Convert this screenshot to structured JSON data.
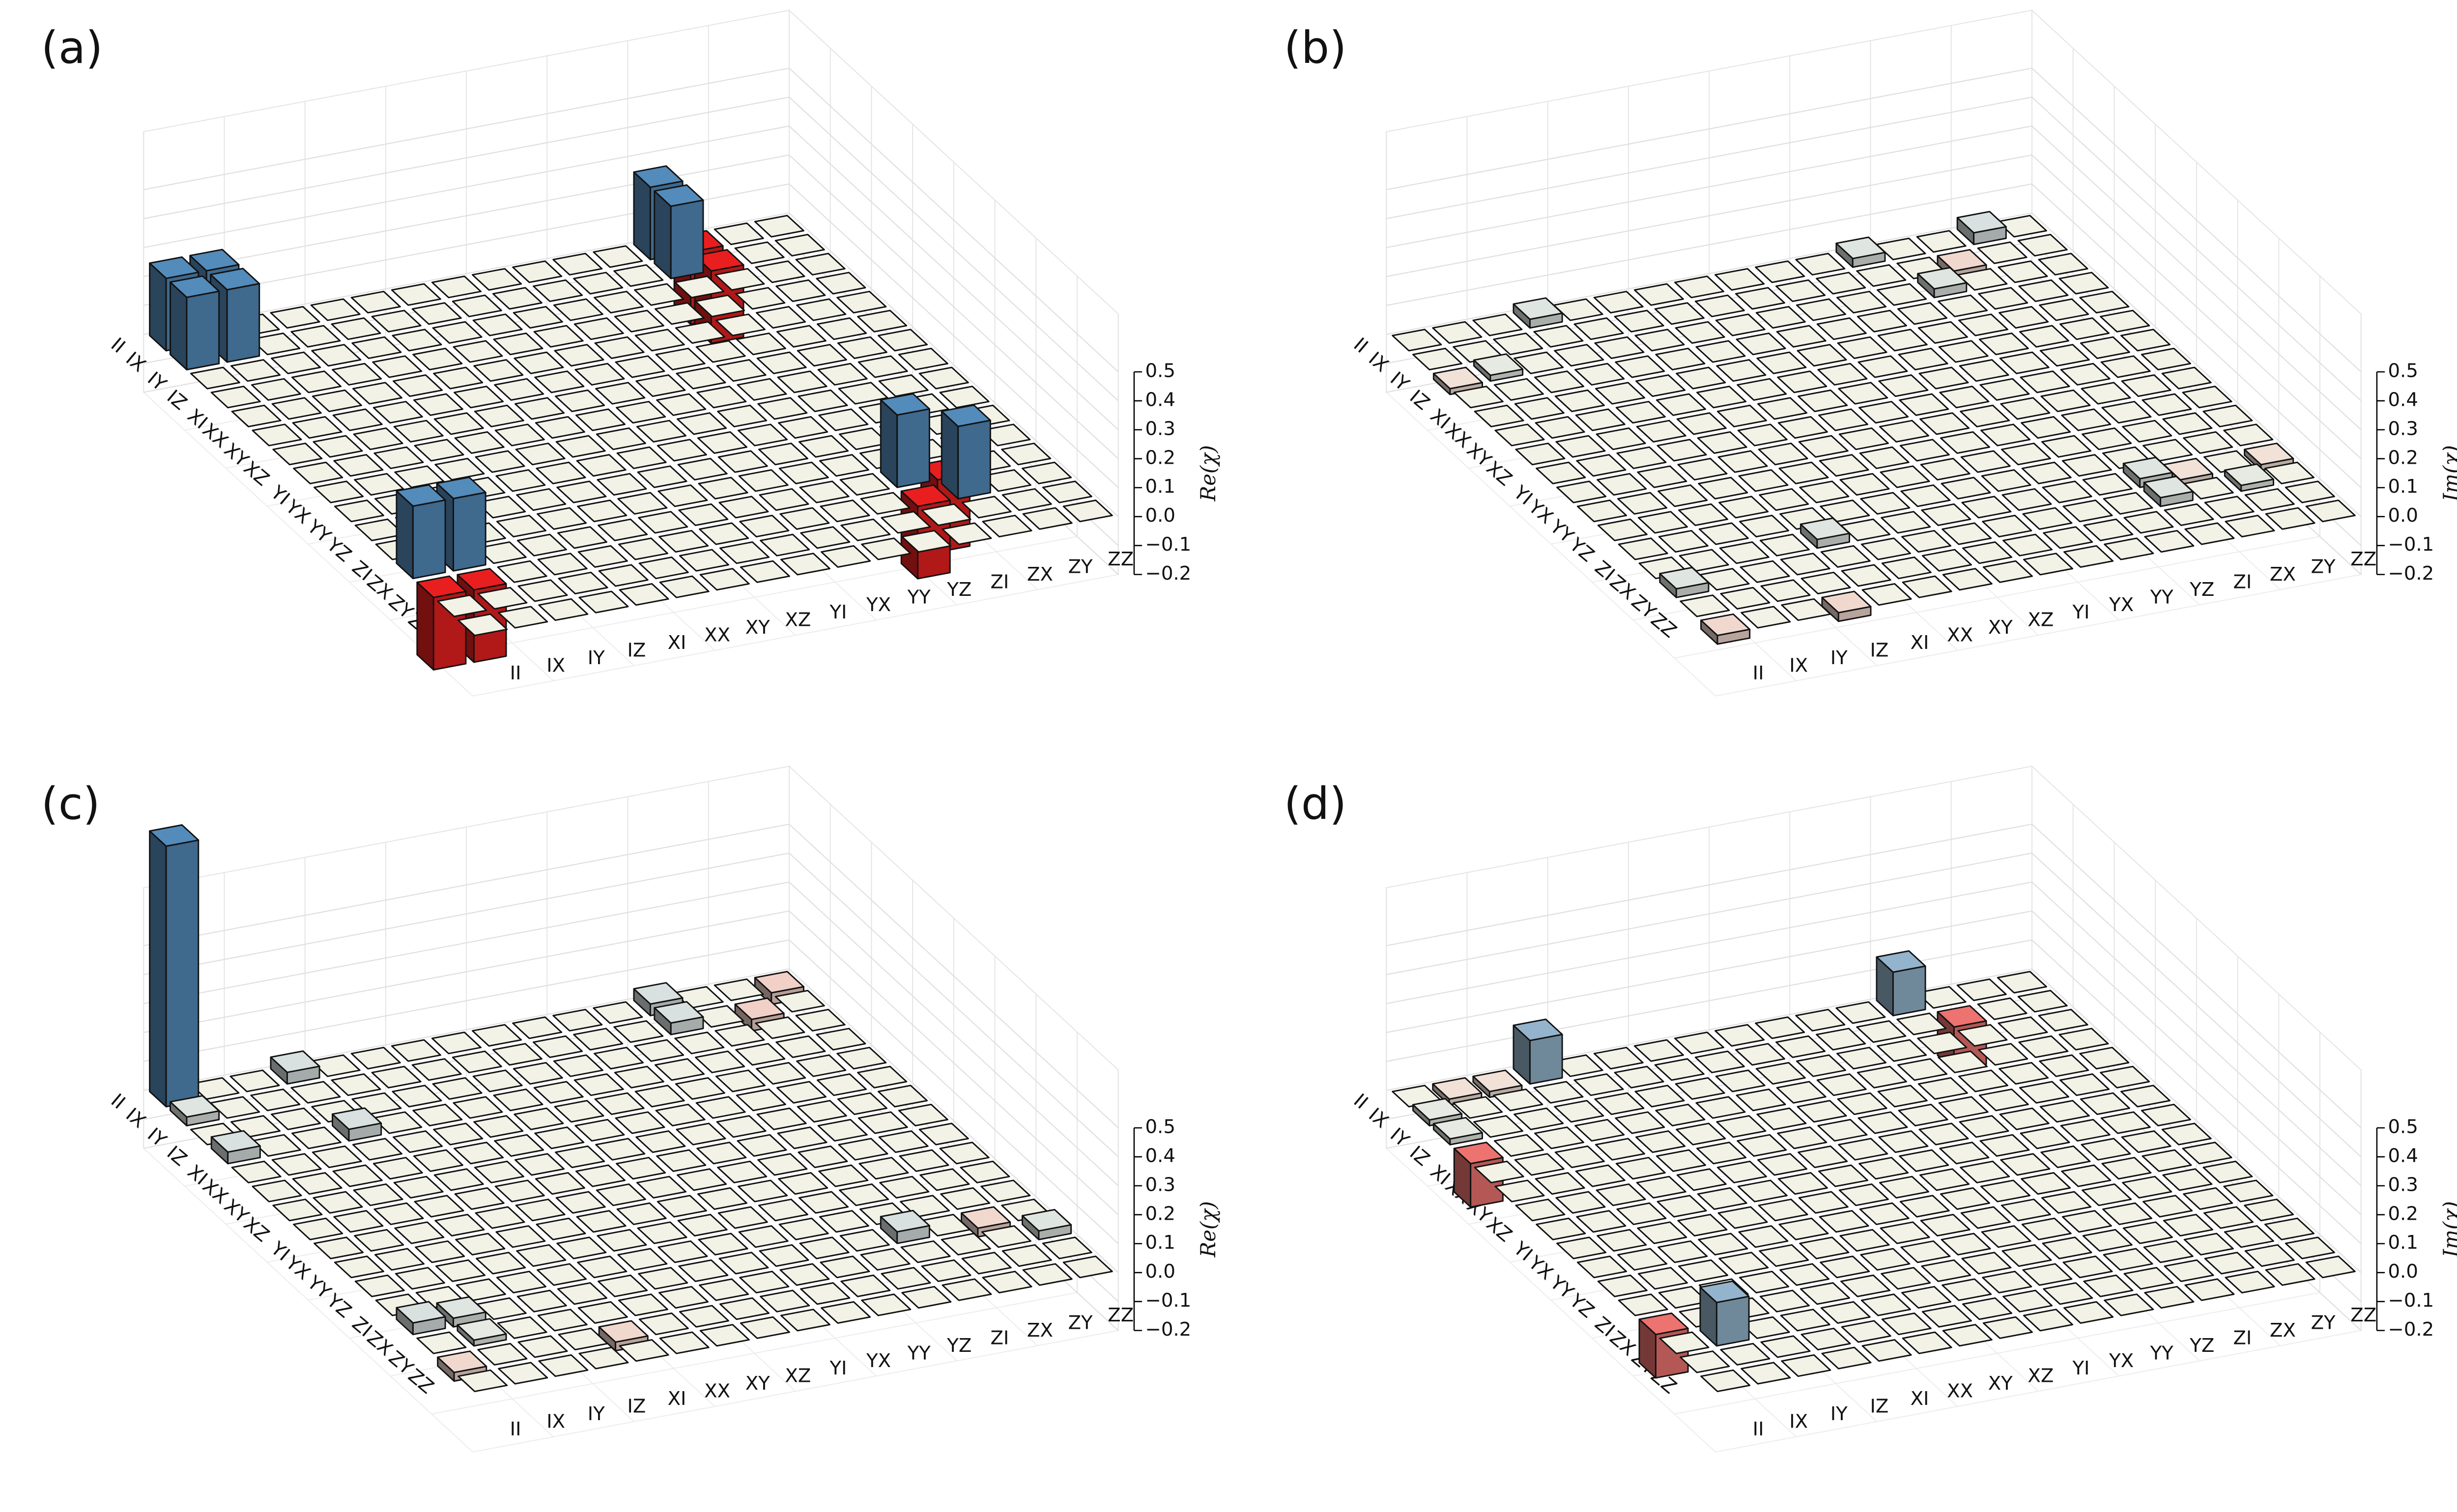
{
  "chart_data": [
    {
      "type": "bar3d",
      "label": "(a)",
      "zlabel": "Re(χ)",
      "categories": [
        "II",
        "IX",
        "IY",
        "IZ",
        "XI",
        "XX",
        "XY",
        "XZ",
        "YI",
        "YX",
        "YY",
        "YZ",
        "ZI",
        "ZX",
        "ZY",
        "ZZ"
      ],
      "zlim": [
        -0.2,
        0.7
      ],
      "zticks": [
        {
          "value": -0.2,
          "label": "−0.2"
        },
        {
          "value": -0.1,
          "label": "−0.1"
        },
        {
          "value": 0,
          "label": "0.0"
        },
        0.1,
        0.2,
        0.3,
        0.4,
        0.5
      ],
      "colors": {
        "positive": "#4a7ca6",
        "negative": "#d01c1c",
        "zero": "#d8d8ce"
      },
      "values": [
        [
          0.25,
          0.25,
          0,
          0,
          0,
          0,
          0,
          0,
          0,
          0,
          0,
          0,
          0.25,
          -0.25,
          0,
          0
        ],
        [
          0.25,
          0.25,
          0,
          0,
          0,
          0,
          0,
          0,
          0,
          0,
          0,
          0,
          0.25,
          -0.25,
          0,
          0
        ],
        [
          0,
          0,
          0,
          0,
          0,
          0,
          0,
          0,
          0,
          0,
          0,
          0,
          0,
          0,
          0,
          0
        ],
        [
          0,
          0,
          0,
          0,
          0,
          0,
          0,
          0,
          0,
          0,
          0,
          0,
          0,
          0,
          0,
          0
        ],
        [
          0,
          0,
          0,
          0,
          0,
          0,
          0,
          0,
          0,
          0,
          0,
          0,
          0,
          0,
          0,
          0
        ],
        [
          0,
          0,
          0,
          0,
          0,
          0,
          0,
          0,
          0,
          0,
          0,
          0,
          0,
          0,
          0,
          0
        ],
        [
          0,
          0,
          0,
          0,
          0,
          0,
          0,
          0,
          0,
          0,
          0,
          0,
          0,
          0,
          0,
          0
        ],
        [
          0,
          0,
          0,
          0,
          0,
          0,
          0,
          0,
          0,
          0,
          0,
          0,
          0,
          0,
          0,
          0
        ],
        [
          0,
          0,
          0,
          0,
          0,
          0,
          0,
          0,
          0,
          0,
          0,
          0,
          0,
          0,
          0,
          0
        ],
        [
          0,
          0,
          0,
          0,
          0,
          0,
          0,
          0,
          0,
          0,
          0,
          0,
          0,
          0,
          0,
          0
        ],
        [
          0,
          0,
          0,
          0,
          0,
          0,
          0,
          0,
          0,
          0,
          0,
          0,
          0,
          0,
          0,
          0
        ],
        [
          0,
          0,
          0,
          0,
          0,
          0,
          0,
          0,
          0,
          0,
          0,
          0,
          0,
          0,
          0,
          0
        ],
        [
          0.25,
          0.25,
          0,
          0,
          0,
          0,
          0,
          0,
          0,
          0,
          0,
          0,
          0.25,
          -0.25,
          0,
          0
        ],
        [
          -0.25,
          -0.25,
          0,
          0,
          0,
          0,
          0,
          0,
          0,
          0,
          0,
          0,
          -0.25,
          0.25,
          0,
          0
        ],
        [
          0,
          0,
          0,
          0,
          0,
          0,
          0,
          0,
          0,
          0,
          0,
          0,
          0,
          0,
          0,
          0
        ],
        [
          0,
          0,
          0,
          0,
          0,
          0,
          0,
          0,
          0,
          0,
          0,
          0,
          0,
          0,
          0,
          0
        ]
      ]
    },
    {
      "type": "bar3d",
      "label": "(b)",
      "zlabel": "Im(χ)",
      "categories": [
        "II",
        "IX",
        "IY",
        "IZ",
        "XI",
        "XX",
        "XY",
        "XZ",
        "YI",
        "YX",
        "YY",
        "YZ",
        "ZI",
        "ZX",
        "ZY",
        "ZZ"
      ],
      "zlim": [
        -0.2,
        0.7
      ],
      "zticks": [
        {
          "value": -0.2,
          "label": "−0.2"
        },
        {
          "value": -0.1,
          "label": "−0.1"
        },
        {
          "value": 0,
          "label": "0.0"
        },
        0.1,
        0.2,
        0.3,
        0.4,
        0.5
      ],
      "colors": {
        "positive": "#4a7ca6",
        "negative": "#d01c1c",
        "zero": "#d8d8ce"
      },
      "values": [
        [
          0,
          0,
          0,
          0.03,
          0,
          0,
          0,
          0,
          0,
          0,
          0,
          0.03,
          0,
          0,
          0.04,
          0
        ],
        [
          0,
          0,
          0,
          0,
          0,
          0,
          0,
          0,
          0,
          0,
          0,
          0,
          0,
          -0.03,
          0,
          0
        ],
        [
          -0.02,
          0.02,
          0,
          0,
          0,
          0,
          0,
          0,
          0,
          0,
          0,
          0,
          0.03,
          0,
          0,
          0
        ],
        [
          0,
          0,
          0,
          0,
          0,
          0,
          0,
          0,
          0,
          0,
          0,
          0,
          0,
          0,
          0,
          0
        ],
        [
          0,
          0,
          0,
          0,
          0,
          0,
          0,
          0,
          0,
          0,
          0,
          0,
          0,
          0,
          0,
          0
        ],
        [
          0,
          0,
          0,
          0,
          0,
          0,
          0,
          0,
          0,
          0,
          0,
          0,
          0,
          0,
          0,
          0
        ],
        [
          0,
          0,
          0,
          0,
          0,
          0,
          0,
          0,
          0,
          0,
          0,
          0,
          0,
          0,
          0,
          0
        ],
        [
          0,
          0,
          0,
          0,
          0,
          0,
          0,
          0,
          0,
          0,
          0,
          0,
          0,
          0,
          0,
          0
        ],
        [
          0,
          0,
          0,
          0,
          0,
          0,
          0,
          0,
          0,
          0,
          0,
          0,
          0,
          0,
          0,
          0
        ],
        [
          0,
          0,
          0,
          0,
          0,
          0,
          0,
          0,
          0,
          0,
          0,
          0,
          0,
          0,
          0,
          0
        ],
        [
          0,
          0,
          0,
          0,
          0,
          0,
          0,
          0,
          0,
          0,
          0,
          0,
          0,
          0,
          0,
          0
        ],
        [
          0,
          0,
          0,
          0,
          0,
          0,
          0,
          0,
          0,
          0,
          0,
          0,
          0,
          0,
          0,
          0
        ],
        [
          0,
          0,
          0,
          0,
          0.03,
          0,
          0,
          0,
          0,
          0,
          0,
          0,
          0.03,
          -0.02,
          0,
          -0.02
        ],
        [
          0.03,
          0,
          0,
          0,
          0,
          0,
          0,
          0,
          0,
          0,
          0,
          0,
          0.03,
          0,
          0.02,
          0
        ],
        [
          0,
          0,
          0,
          0,
          0,
          0,
          0,
          0,
          0,
          0,
          0,
          0,
          0,
          0,
          0,
          0
        ],
        [
          -0.03,
          0,
          0,
          -0.03,
          0,
          0,
          0,
          0,
          0,
          0,
          0,
          0,
          0,
          0,
          0,
          0
        ]
      ]
    },
    {
      "type": "bar3d",
      "label": "(c)",
      "zlabel": "Re(χ)",
      "categories": [
        "II",
        "IX",
        "IY",
        "IZ",
        "XI",
        "XX",
        "XY",
        "XZ",
        "YI",
        "YX",
        "YY",
        "YZ",
        "ZI",
        "ZX",
        "ZY",
        "ZZ"
      ],
      "zlim": [
        -0.2,
        0.7
      ],
      "zticks": [
        {
          "value": -0.2,
          "label": "−0.2"
        },
        {
          "value": -0.1,
          "label": "−0.1"
        },
        {
          "value": 0,
          "label": "0.0"
        },
        0.1,
        0.2,
        0.3,
        0.4,
        0.5
      ],
      "colors": {
        "positive": "#4a7ca6",
        "negative": "#d01c1c",
        "zero": "#d8d8ce"
      },
      "values": [
        [
          0.9,
          0,
          0,
          0.04,
          0,
          0,
          0,
          0,
          0,
          0,
          0,
          0,
          0.04,
          0,
          0,
          -0.04
        ],
        [
          0.03,
          0,
          0,
          0,
          0,
          0,
          0,
          0,
          0,
          0,
          0,
          0,
          0.04,
          0,
          -0.04,
          0
        ],
        [
          0,
          0,
          0,
          0,
          0,
          0,
          0,
          0,
          0,
          0,
          0,
          0,
          0,
          0,
          0,
          0
        ],
        [
          0.04,
          0,
          0,
          0.04,
          0,
          0,
          0,
          0,
          0,
          0,
          0,
          0,
          0,
          0,
          0,
          0
        ],
        [
          0,
          0,
          0,
          0,
          0,
          0,
          0,
          0,
          0,
          0,
          0,
          0,
          0,
          0,
          0,
          0
        ],
        [
          0,
          0,
          0,
          0,
          0,
          0,
          0,
          0,
          0,
          0,
          0,
          0,
          0,
          0,
          0,
          0
        ],
        [
          0,
          0,
          0,
          0,
          0,
          0,
          0,
          0,
          0,
          0,
          0,
          0,
          0,
          0,
          0,
          0
        ],
        [
          0,
          0,
          0,
          0,
          0,
          0,
          0,
          0,
          0,
          0,
          0,
          0,
          0,
          0,
          0,
          0
        ],
        [
          0,
          0,
          0,
          0,
          0,
          0,
          0,
          0,
          0,
          0,
          0,
          0,
          0,
          0,
          0,
          0
        ],
        [
          0,
          0,
          0,
          0,
          0,
          0,
          0,
          0,
          0,
          0,
          0,
          0,
          0,
          0,
          0,
          0
        ],
        [
          0,
          0,
          0,
          0,
          0,
          0,
          0,
          0,
          0,
          0,
          0,
          0,
          0,
          0,
          0,
          0
        ],
        [
          0,
          0,
          0,
          0,
          0,
          0,
          0,
          0,
          0,
          0,
          0,
          0,
          0,
          0,
          0,
          0
        ],
        [
          0.04,
          0.03,
          0,
          0,
          0,
          0,
          0,
          0,
          0,
          0,
          0,
          0,
          0.04,
          0,
          -0.03,
          0
        ],
        [
          0,
          0.02,
          0,
          0,
          0,
          0,
          0,
          0,
          0,
          0,
          0,
          0,
          0,
          0,
          0,
          0.03
        ],
        [
          -0.03,
          0,
          0,
          0,
          -0.03,
          0,
          0,
          0,
          0,
          0,
          0,
          0,
          0,
          0,
          0,
          0
        ],
        [
          0,
          0,
          0,
          0,
          0,
          0,
          0,
          0,
          0,
          0,
          0,
          0,
          0,
          0,
          0,
          0
        ]
      ]
    },
    {
      "type": "bar3d",
      "label": "(d)",
      "zlabel": "Im(χ)",
      "categories": [
        "II",
        "IX",
        "IY",
        "IZ",
        "XI",
        "XX",
        "XY",
        "XZ",
        "YI",
        "YX",
        "YY",
        "YZ",
        "ZI",
        "ZX",
        "ZY",
        "ZZ"
      ],
      "zlim": [
        -0.2,
        0.7
      ],
      "zticks": [
        {
          "value": -0.2,
          "label": "−0.2"
        },
        {
          "value": -0.1,
          "label": "−0.1"
        },
        {
          "value": 0,
          "label": "0.0"
        },
        0.1,
        0.2,
        0.3,
        0.4,
        0.5
      ],
      "colors": {
        "positive": "#4a7ca6",
        "negative": "#d01c1c",
        "zero": "#d8d8ce"
      },
      "values": [
        [
          0,
          -0.02,
          -0.02,
          0.15,
          0,
          0,
          0,
          0,
          0,
          0,
          0,
          0,
          0.15,
          0,
          0,
          0
        ],
        [
          0.02,
          0,
          0,
          0,
          0,
          0,
          0,
          0,
          0,
          0,
          0,
          0,
          0,
          -0.15,
          0,
          0
        ],
        [
          0.02,
          0,
          0,
          0,
          0,
          0,
          0,
          0,
          0,
          0,
          0,
          0,
          0,
          0,
          0,
          0
        ],
        [
          -0.15,
          0,
          0,
          0,
          0,
          0,
          0,
          0,
          0,
          0,
          0,
          0,
          0,
          0,
          0,
          0
        ],
        [
          0,
          0,
          0,
          0,
          0,
          0,
          0,
          0,
          0,
          0,
          0,
          0,
          0,
          0,
          0,
          0
        ],
        [
          0,
          0,
          0,
          0,
          0,
          0,
          0,
          0,
          0,
          0,
          0,
          0,
          0,
          0,
          0,
          0
        ],
        [
          0,
          0,
          0,
          0,
          0,
          0,
          0,
          0,
          0,
          0,
          0,
          0,
          0,
          0,
          0,
          0
        ],
        [
          0,
          0,
          0,
          0,
          0,
          0,
          0,
          0,
          0,
          0,
          0,
          0,
          0,
          0,
          0,
          0
        ],
        [
          0,
          0,
          0,
          0,
          0,
          0,
          0,
          0,
          0,
          0,
          0,
          0,
          0,
          0,
          0,
          0
        ],
        [
          0,
          0,
          0,
          0,
          0,
          0,
          0,
          0,
          0,
          0,
          0,
          0,
          0,
          0,
          0,
          0
        ],
        [
          0,
          0,
          0,
          0,
          0,
          0,
          0,
          0,
          0,
          0,
          0,
          0,
          0,
          0,
          0,
          0
        ],
        [
          0,
          0,
          0,
          0,
          0,
          0,
          0,
          0,
          0,
          0,
          0,
          0,
          0,
          0,
          0,
          0
        ],
        [
          -0.15,
          0,
          0,
          0,
          0,
          0,
          0,
          0,
          0,
          0,
          0,
          0,
          0,
          0,
          0,
          0
        ],
        [
          0,
          0.15,
          0,
          0,
          0,
          0,
          0,
          0,
          0,
          0,
          0,
          0,
          0,
          0,
          0,
          0
        ],
        [
          0,
          0,
          0,
          0,
          0,
          0,
          0,
          0,
          0,
          0,
          0,
          0,
          0,
          0,
          0,
          0
        ],
        [
          0,
          0,
          0,
          0,
          0,
          0,
          0,
          0,
          0,
          0,
          0,
          0,
          0,
          0,
          0,
          0
        ]
      ]
    }
  ]
}
